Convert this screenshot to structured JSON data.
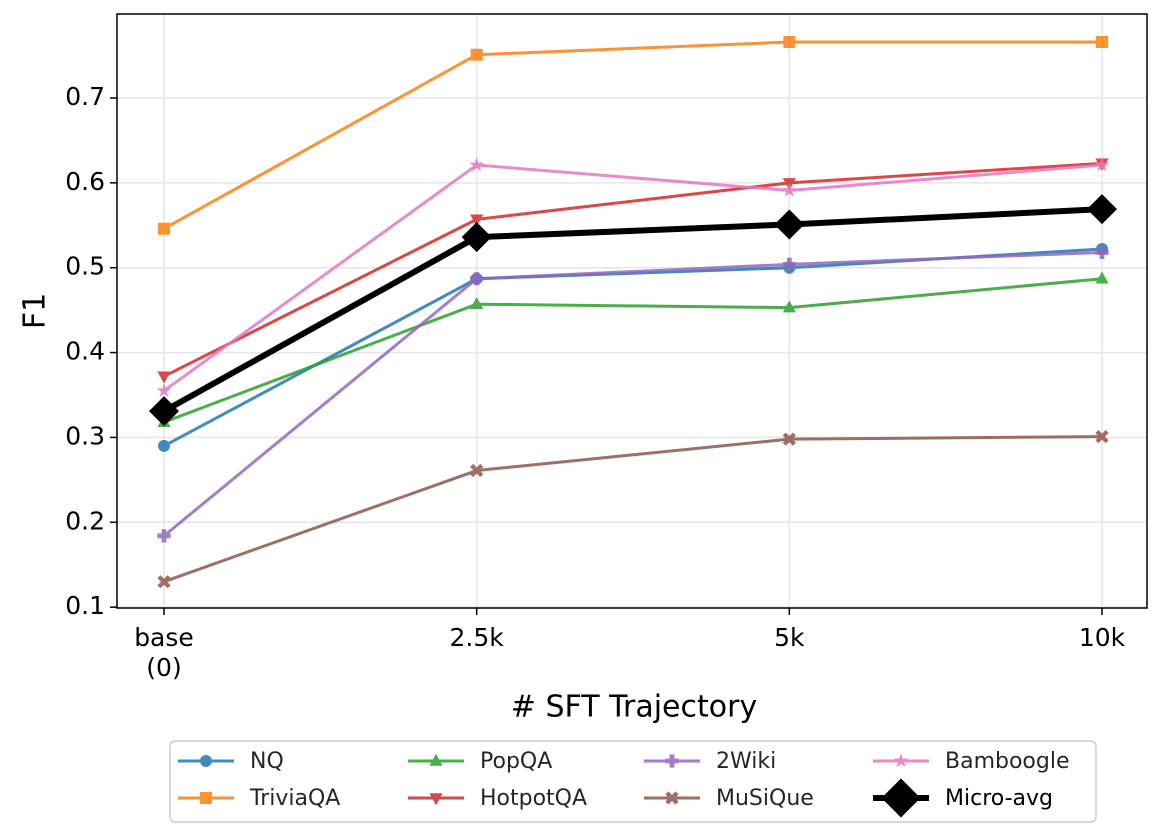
{
  "chart_data": {
    "type": "line",
    "x_label": "# SFT Trajectory",
    "y_label": "F1",
    "categories": [
      "base\n(0)",
      "2.5k",
      "5k",
      "10k"
    ],
    "ylim": [
      0.099,
      0.799
    ],
    "yticks": [
      0.1,
      0.2,
      0.3,
      0.4,
      0.5,
      0.6,
      0.7
    ],
    "grid": true,
    "legend": "below",
    "legend_columns": 4,
    "series": [
      {
        "name": "NQ",
        "color": "#1f77b4",
        "marker": "circle",
        "values": [
          0.29,
          0.487,
          0.5,
          0.522
        ]
      },
      {
        "name": "TriviaQA",
        "color": "#ff7f0e",
        "marker": "square",
        "values": [
          0.546,
          0.751,
          0.766,
          0.766
        ]
      },
      {
        "name": "PopQA",
        "color": "#2ca02c",
        "marker": "triangle-up",
        "values": [
          0.318,
          0.457,
          0.453,
          0.487
        ]
      },
      {
        "name": "HotpotQA",
        "color": "#d62728",
        "marker": "triangle-down",
        "values": [
          0.372,
          0.557,
          0.6,
          0.623
        ]
      },
      {
        "name": "2Wiki",
        "color": "#9467bd",
        "marker": "plus",
        "values": [
          0.184,
          0.487,
          0.504,
          0.518
        ]
      },
      {
        "name": "MuSiQue",
        "color": "#8c564b",
        "marker": "x",
        "values": [
          0.13,
          0.261,
          0.298,
          0.301
        ]
      },
      {
        "name": "Bamboogle",
        "color": "#e377c2",
        "marker": "star",
        "values": [
          0.355,
          0.621,
          0.591,
          0.621
        ]
      },
      {
        "name": "Micro-avg",
        "color": "#000000",
        "marker": "diamond",
        "line_width": 6,
        "values": [
          0.331,
          0.536,
          0.551,
          0.569
        ]
      }
    ]
  }
}
